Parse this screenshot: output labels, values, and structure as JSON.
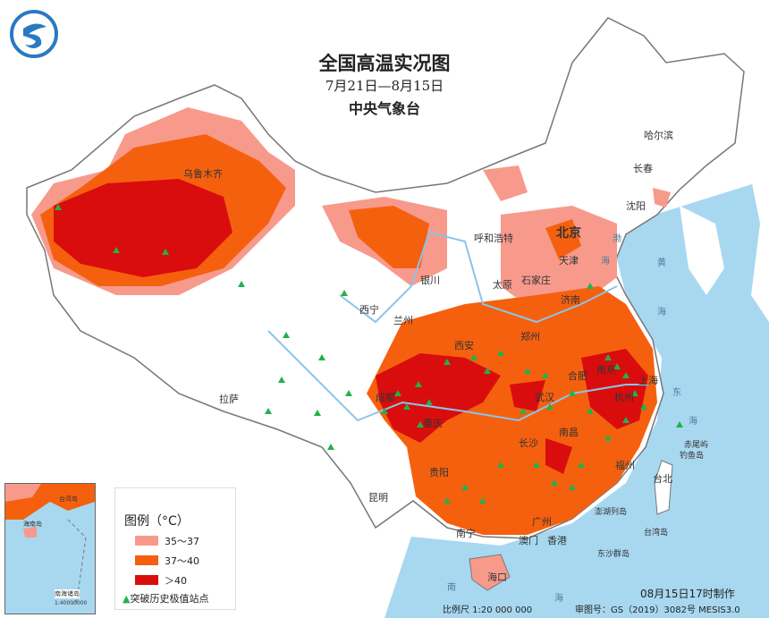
{
  "header": {
    "title": "全国高温实况图",
    "date_range": "7月21日—8月15日",
    "agency": "中央气象台"
  },
  "logo": {
    "icon": "cma-logo-icon"
  },
  "legend": {
    "title": "图例（°C）",
    "items": [
      {
        "label": "35～37",
        "color": "#f79a8c"
      },
      {
        "label": "37～40",
        "color": "#f5600f"
      },
      {
        "label": "＞40",
        "color": "#d90d0d"
      }
    ],
    "marker_label": "突破历史极值站点",
    "marker_color": "#22b14c"
  },
  "cities": [
    "乌鲁木齐",
    "哈尔滨",
    "长春",
    "沈阳",
    "北京",
    "天津",
    "呼和浩特",
    "银川",
    "太原",
    "石家庄",
    "济南",
    "西宁",
    "兰州",
    "郑州",
    "西安",
    "合肥",
    "南京",
    "上海",
    "杭州",
    "成都",
    "重庆",
    "武汉",
    "长沙",
    "南昌",
    "福州",
    "贵阳",
    "昆明",
    "南宁",
    "广州",
    "澳门",
    "香港",
    "海口",
    "拉萨",
    "台北"
  ],
  "islands": [
    "赤尾屿",
    "钓鱼岛",
    "澎湖列岛",
    "东沙群岛",
    "台湾岛"
  ],
  "seas": [
    "渤",
    "海",
    "黄",
    "海",
    "东",
    "海",
    "南",
    "海"
  ],
  "inset": {
    "labels": [
      "台湾岛",
      "海南岛",
      "南海诸岛"
    ],
    "scale": "1:40000000"
  },
  "footer": {
    "made_at": "08月15日17时制作",
    "scale": "比例尺 1:20 000 000",
    "approval": "审图号：GS（2019）3082号 MESIS3.0"
  },
  "colors": {
    "sea": "#a8d8f0",
    "land": "#ffffff",
    "border": "#888888"
  }
}
